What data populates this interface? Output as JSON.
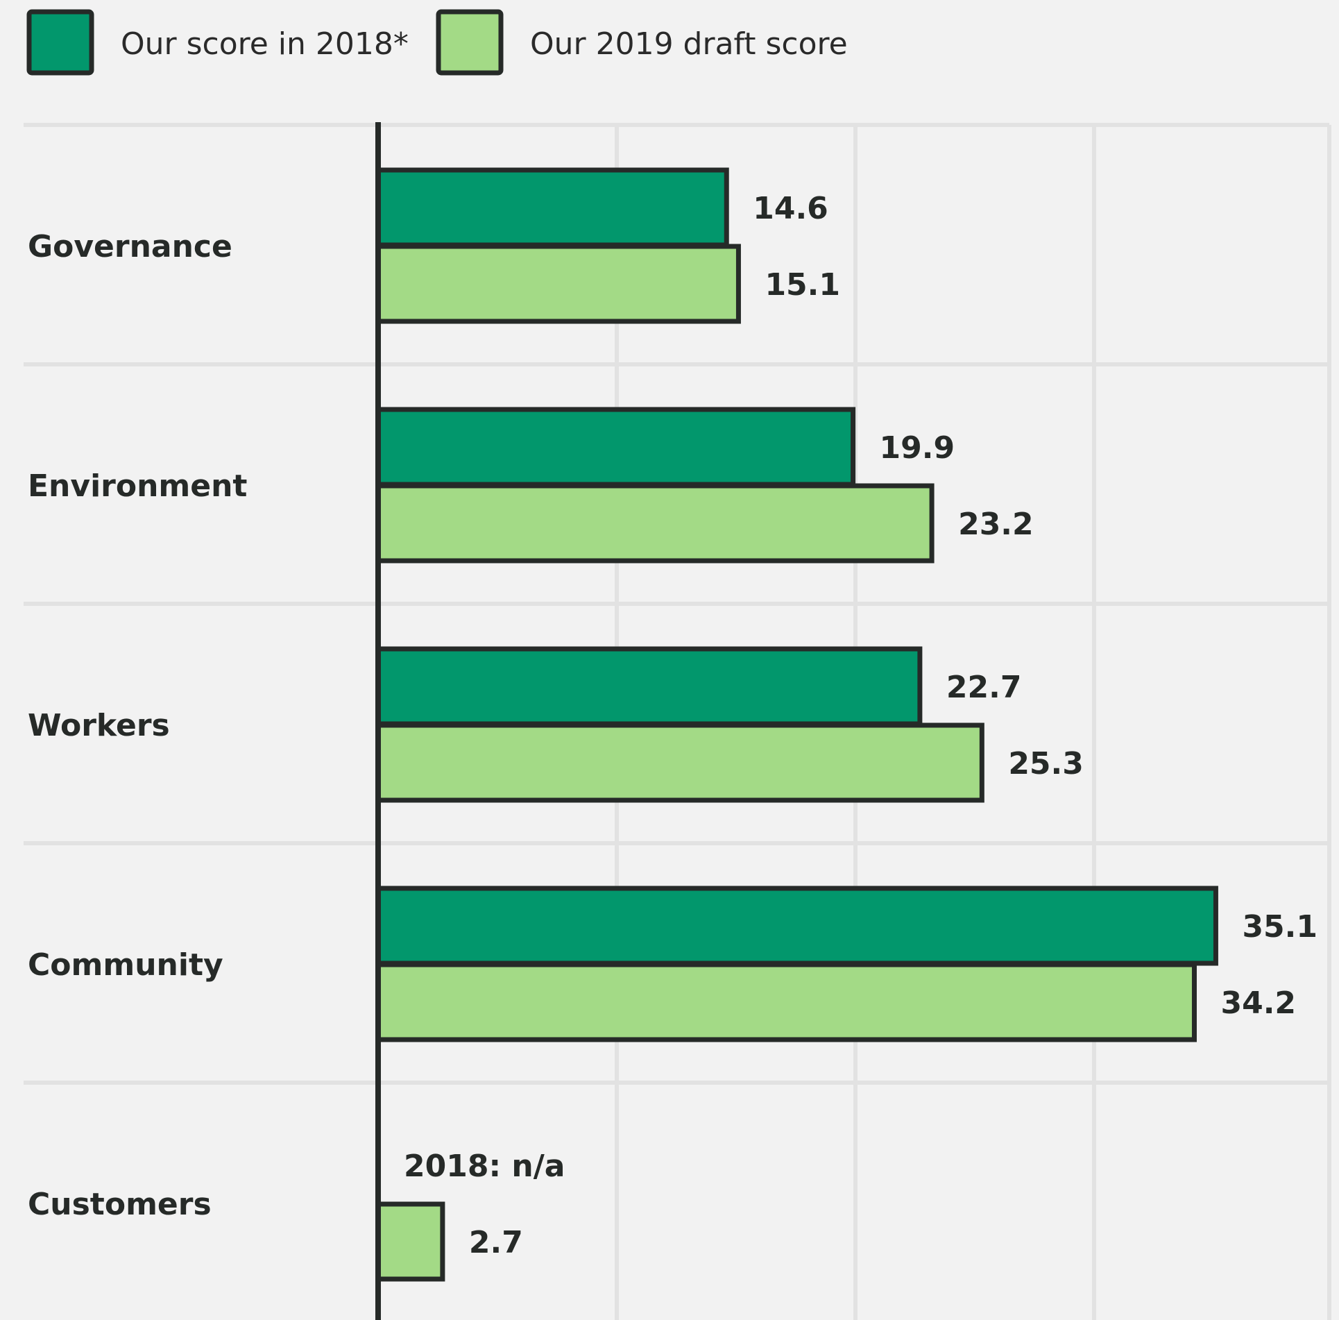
{
  "chart_data": {
    "type": "bar",
    "orientation": "horizontal",
    "categories": [
      "Governance",
      "Environment",
      "Workers",
      "Community",
      "Customers"
    ],
    "series": [
      {
        "name": "Our score in 2018*",
        "color": "#02976c",
        "values": [
          14.6,
          19.9,
          22.7,
          35.1,
          null
        ]
      },
      {
        "name": "Our 2019 draft score",
        "color": "#a3da86",
        "values": [
          15.1,
          23.2,
          25.3,
          34.2,
          2.7
        ]
      }
    ],
    "value_labels": [
      [
        "14.6",
        "19.9",
        "22.7",
        "35.1",
        null
      ],
      [
        "15.1",
        "23.2",
        "25.3",
        "34.2",
        "2.7"
      ]
    ],
    "annotations": [
      {
        "category": "Customers",
        "text": "2018: n/a"
      }
    ],
    "xlim": [
      0,
      40
    ],
    "grid": true,
    "legend_position": "top-left",
    "outline_color": "#262a28",
    "grid_color": "#e2e2e2"
  }
}
